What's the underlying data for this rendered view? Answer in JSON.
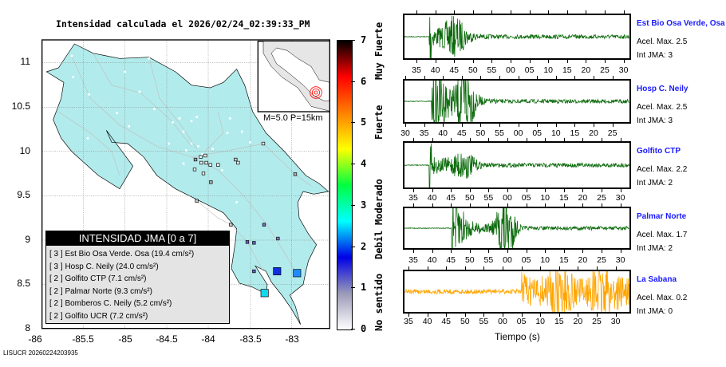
{
  "map": {
    "title": "Intensidad calculada el 2026/02/24_02:39:33_PM",
    "lat_ticks": [
      "11",
      "10.5",
      "10",
      "9.5",
      "9",
      "8.5",
      "8"
    ],
    "lon_ticks": [
      "-86",
      "-85.5",
      "-85",
      "-84.5",
      "-84",
      "-83.5",
      "-83"
    ],
    "inset_label": "M=5.0 P=15km",
    "footer": "LISUCR 20260224203935"
  },
  "legend": {
    "title": "INTENSIDAD JMA [0 a 7]",
    "items": [
      {
        "text": "[ 3 ]  Est Bio Osa Verde. Osa (19.4 cm/s²)"
      },
      {
        "text": "[ 3 ]  Hosp C. Neily (24.0 cm/s²)"
      },
      {
        "text": "[ 2 ]  Golfito CTP (7.1 cm/s²)"
      },
      {
        "text": "[ 2 ]  Palmar Norte (9.3 cm/s²)"
      },
      {
        "text": "[ 2 ]  Bomberos C. Neily (5.2 cm/s²)"
      },
      {
        "text": "[ 2 ]  Golfito UCR (7.2 cm/s²)"
      }
    ]
  },
  "colorbar": {
    "ticks": [
      "7",
      "6",
      "5",
      "4",
      "3",
      "2",
      "1",
      "0"
    ],
    "words": [
      "Muy Fuerte",
      "Fuerte",
      "Moderado",
      "Debil",
      "No sentido"
    ],
    "colors": [
      "#ffffff",
      "#9a9ab8",
      "#0000e6",
      "#00ffff",
      "#00ff40",
      "#ffff00",
      "#ff8000",
      "#ff0000",
      "#000000"
    ]
  },
  "stations": [
    {
      "name": "Est Bio Osa Verde, Osa",
      "acel": "Acel. Max. 2.5",
      "int": "Int JMA: 3",
      "color": "#0a6a0a",
      "ticks": [
        "35",
        "40",
        "45",
        "50",
        "55",
        "00",
        "05",
        "10",
        "15",
        "20",
        "25",
        "30"
      ]
    },
    {
      "name": "Hosp C. Neily",
      "acel": "Acel. Max. 2.5",
      "int": "Int JMA: 3",
      "color": "#0a6a0a",
      "ticks": [
        "30",
        "35",
        "40",
        "45",
        "50",
        "55",
        "00",
        "05",
        "10",
        "15",
        "20",
        "25"
      ]
    },
    {
      "name": "Golfito CTP",
      "acel": "Acel. Max. 2.2",
      "int": "Int JMA: 2",
      "color": "#0a6a0a",
      "ticks": [
        "35",
        "40",
        "45",
        "50",
        "55",
        "00",
        "05",
        "10",
        "15",
        "20",
        "25",
        "30"
      ]
    },
    {
      "name": "Palmar Norte",
      "acel": "Acel. Max. 1.7",
      "int": "Int JMA: 2",
      "color": "#0a6a0a",
      "ticks": [
        "35",
        "40",
        "45",
        "50",
        "55",
        "00",
        "05",
        "10",
        "15",
        "20",
        "25",
        "30"
      ]
    },
    {
      "name": "La Sabana",
      "acel": "Acel. Max. 0.2",
      "int": "Int JMA: 0",
      "color": "#ffa500",
      "ticks": [
        "35",
        "40",
        "45",
        "50",
        "55",
        "00",
        "05",
        "10",
        "15",
        "20",
        "25",
        "30"
      ]
    }
  ],
  "xaxis_label": "Tiempo (s)"
}
